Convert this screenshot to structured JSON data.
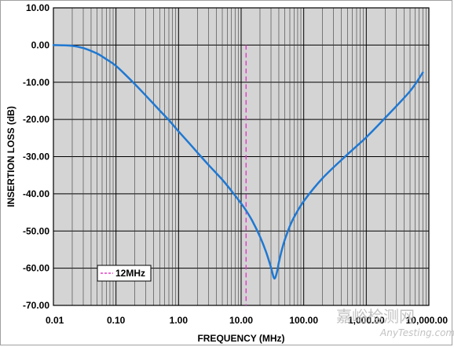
{
  "chart_data": {
    "type": "line",
    "xscale": "log",
    "xlim": [
      0.01,
      10000
    ],
    "ylim": [
      -70,
      10
    ],
    "xlabel": "FREQUENCY (MHz)",
    "ylabel": "INSERTION LOSS (dB)",
    "grid": true,
    "x_tick_labels": [
      "0.01",
      "0.10",
      "1.00",
      "10.00",
      "100.00",
      "1,000.00",
      "10,000.00"
    ],
    "y_tick_labels": [
      "10.00",
      "0.00",
      "-10.00",
      "-20.00",
      "-30.00",
      "-40.00",
      "-50.00",
      "-60.00",
      "-70.00"
    ],
    "series": [
      {
        "color": "#1f78d2",
        "x": [
          0.01,
          0.02,
          0.03,
          0.05,
          0.07,
          0.1,
          0.15,
          0.2,
          0.3,
          0.5,
          0.7,
          1,
          1.5,
          2,
          3,
          5,
          7,
          10,
          12,
          15,
          20,
          25,
          30,
          33,
          35,
          38,
          40,
          45,
          50,
          60,
          70,
          100,
          200,
          500,
          1000,
          2000,
          5000,
          8000
        ],
        "y": [
          0,
          -0.2,
          -0.8,
          -2.3,
          -3.8,
          -5.6,
          -8.4,
          -10.5,
          -13.6,
          -17.6,
          -20.2,
          -23.2,
          -26.5,
          -28.9,
          -32.2,
          -36.2,
          -39.2,
          -42.6,
          -44.5,
          -47.2,
          -51.5,
          -55.6,
          -59.8,
          -62.4,
          -62.6,
          -60.5,
          -58.5,
          -54.9,
          -52.3,
          -48.7,
          -46.3,
          -42.0,
          -35.8,
          -29.4,
          -24.8,
          -19.6,
          -12.4,
          -7.4
        ]
      }
    ],
    "reference_lines": [
      {
        "type": "vertical",
        "x": 12,
        "color": "#e040c8",
        "style": "dashed",
        "label": "12MHz"
      }
    ],
    "legend": {
      "position": "bottom-left",
      "entries": [
        "12MHz"
      ]
    }
  },
  "watermark": {
    "cn": "嘉峪检测网",
    "url": "AnyTesting.com"
  }
}
